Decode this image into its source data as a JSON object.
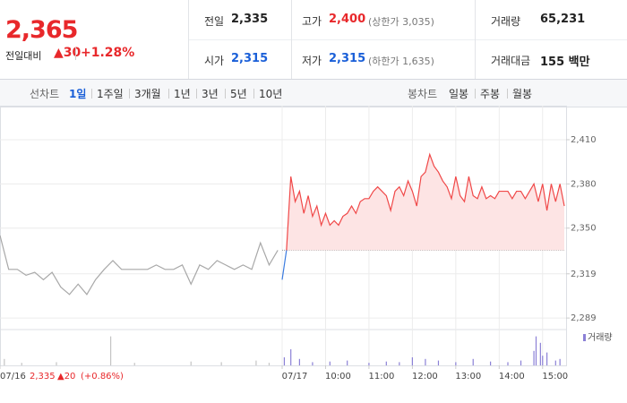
{
  "header": {
    "price": "2,365",
    "change_label": "전일대비",
    "change": "▲30",
    "change_pct": "+1.28%",
    "stats": [
      {
        "label": "전일",
        "value": "2,335"
      },
      {
        "label": "고가",
        "value": "2,400",
        "note": "(상한가 3,035)"
      },
      {
        "label": "거래량",
        "value": "65,231"
      },
      {
        "label": "시가",
        "value": "2,315"
      },
      {
        "label": "저가",
        "value": "2,315",
        "note": "(하한가 1,635)"
      },
      {
        "label": "거래대금",
        "value": "155 백만"
      }
    ]
  },
  "toolbar": {
    "line_label": "선차트",
    "ranges": [
      "1일",
      "1주일",
      "3개월",
      "1년",
      "3년",
      "5년",
      "10년"
    ],
    "active": "1일",
    "candle_label": "봉차트",
    "candles": [
      "일봉",
      "주봉",
      "월봉"
    ]
  },
  "info": {
    "price": "2,335",
    "change": "▲20",
    "change_pct": "(+0.86%)"
  },
  "chart_data": {
    "type": "line",
    "xlim": [
      0,
      13
    ],
    "ylim": [
      2283,
      2427
    ],
    "yticks": [
      {
        "value": 2410,
        "label": "2,410"
      },
      {
        "value": 2380,
        "label": "2,380"
      },
      {
        "value": 2350,
        "label": "2,350"
      },
      {
        "value": 2319,
        "label": "2,319"
      },
      {
        "value": 2289,
        "label": "2,289"
      }
    ],
    "xticks": [
      {
        "value": 0,
        "label": "07/16"
      },
      {
        "value": 6.5,
        "label": "07/17"
      },
      {
        "value": 7.5,
        "label": "10:00"
      },
      {
        "value": 8.5,
        "label": "11:00"
      },
      {
        "value": 9.5,
        "label": "12:00"
      },
      {
        "value": 10.5,
        "label": "13:00"
      },
      {
        "value": 11.5,
        "label": "14:00"
      },
      {
        "value": 12.5,
        "label": "15:00"
      }
    ],
    "grid": true,
    "baseline": 2335,
    "series": [
      {
        "color": "#a8a8a8",
        "x": [
          0,
          0.2,
          0.4,
          0.6,
          0.8,
          1.0,
          1.2,
          1.4,
          1.6,
          1.8,
          2.0,
          2.2,
          2.4,
          2.6,
          2.8,
          3.0,
          3.2,
          3.4,
          3.6,
          3.8,
          4.0,
          4.2,
          4.4,
          4.6,
          4.8,
          5.0,
          5.2,
          5.4,
          5.6,
          5.8,
          6.0,
          6.2,
          6.4
        ],
        "values": [
          2345,
          2322,
          2322,
          2318,
          2320,
          2315,
          2320,
          2310,
          2305,
          2312,
          2305,
          2315,
          2322,
          2328,
          2322,
          2322,
          2322,
          2322,
          2325,
          2322,
          2322,
          2325,
          2312,
          2325,
          2322,
          2328,
          2325,
          2322,
          2325,
          2322,
          2340,
          2325,
          2335
        ]
      },
      {
        "color": "#3a7be0",
        "x": [
          6.5,
          6.6
        ],
        "values": [
          2315,
          2335
        ]
      },
      {
        "color": "#f04848",
        "fill": "#fde4e4",
        "x": [
          6.6,
          6.7,
          6.8,
          6.9,
          7.0,
          7.1,
          7.2,
          7.3,
          7.4,
          7.5,
          7.6,
          7.7,
          7.8,
          7.9,
          8.0,
          8.1,
          8.2,
          8.3,
          8.4,
          8.5,
          8.6,
          8.7,
          8.8,
          8.9,
          9.0,
          9.1,
          9.2,
          9.3,
          9.4,
          9.5,
          9.6,
          9.7,
          9.8,
          9.9,
          10.0,
          10.1,
          10.2,
          10.3,
          10.4,
          10.5,
          10.6,
          10.7,
          10.8,
          10.9,
          11.0,
          11.1,
          11.2,
          11.3,
          11.4,
          11.5,
          11.6,
          11.7,
          11.8,
          11.9,
          12.0,
          12.1,
          12.2,
          12.3,
          12.4,
          12.5,
          12.6,
          12.7,
          12.8,
          12.9,
          13.0
        ],
        "values": [
          2335,
          2385,
          2368,
          2375,
          2360,
          2372,
          2358,
          2365,
          2352,
          2360,
          2352,
          2355,
          2352,
          2358,
          2360,
          2365,
          2360,
          2368,
          2370,
          2370,
          2375,
          2378,
          2375,
          2372,
          2362,
          2375,
          2378,
          2372,
          2382,
          2375,
          2365,
          2385,
          2388,
          2400,
          2392,
          2388,
          2382,
          2378,
          2370,
          2385,
          2372,
          2368,
          2385,
          2372,
          2370,
          2378,
          2370,
          2372,
          2370,
          2375,
          2375,
          2375,
          2370,
          2375,
          2375,
          2370,
          2375,
          2380,
          2368,
          2380,
          2362,
          2380,
          2368,
          2380,
          2365
        ]
      }
    ],
    "volume": {
      "label": "거래량",
      "ylim": [
        0,
        100
      ],
      "series": [
        {
          "color": "#c4c4c4",
          "x": [
            0.1,
            0.5,
            1.3,
            2.55,
            3.1,
            4.4,
            5.1,
            5.9,
            6.2
          ],
          "values": [
            20,
            8,
            10,
            90,
            8,
            12,
            10,
            15,
            8
          ]
        },
        {
          "color": "#8b80d6",
          "x": [
            6.55,
            6.7,
            6.9,
            7.2,
            7.6,
            8.0,
            8.5,
            8.9,
            9.2,
            9.5,
            9.8,
            10.1,
            10.5,
            10.9,
            11.3,
            11.7,
            12.0,
            12.3,
            12.35,
            12.45,
            12.5,
            12.6,
            12.8,
            12.9
          ],
          "values": [
            25,
            50,
            20,
            10,
            12,
            15,
            8,
            12,
            10,
            25,
            20,
            15,
            10,
            20,
            12,
            10,
            15,
            45,
            90,
            70,
            30,
            40,
            15,
            20
          ]
        }
      ]
    }
  }
}
